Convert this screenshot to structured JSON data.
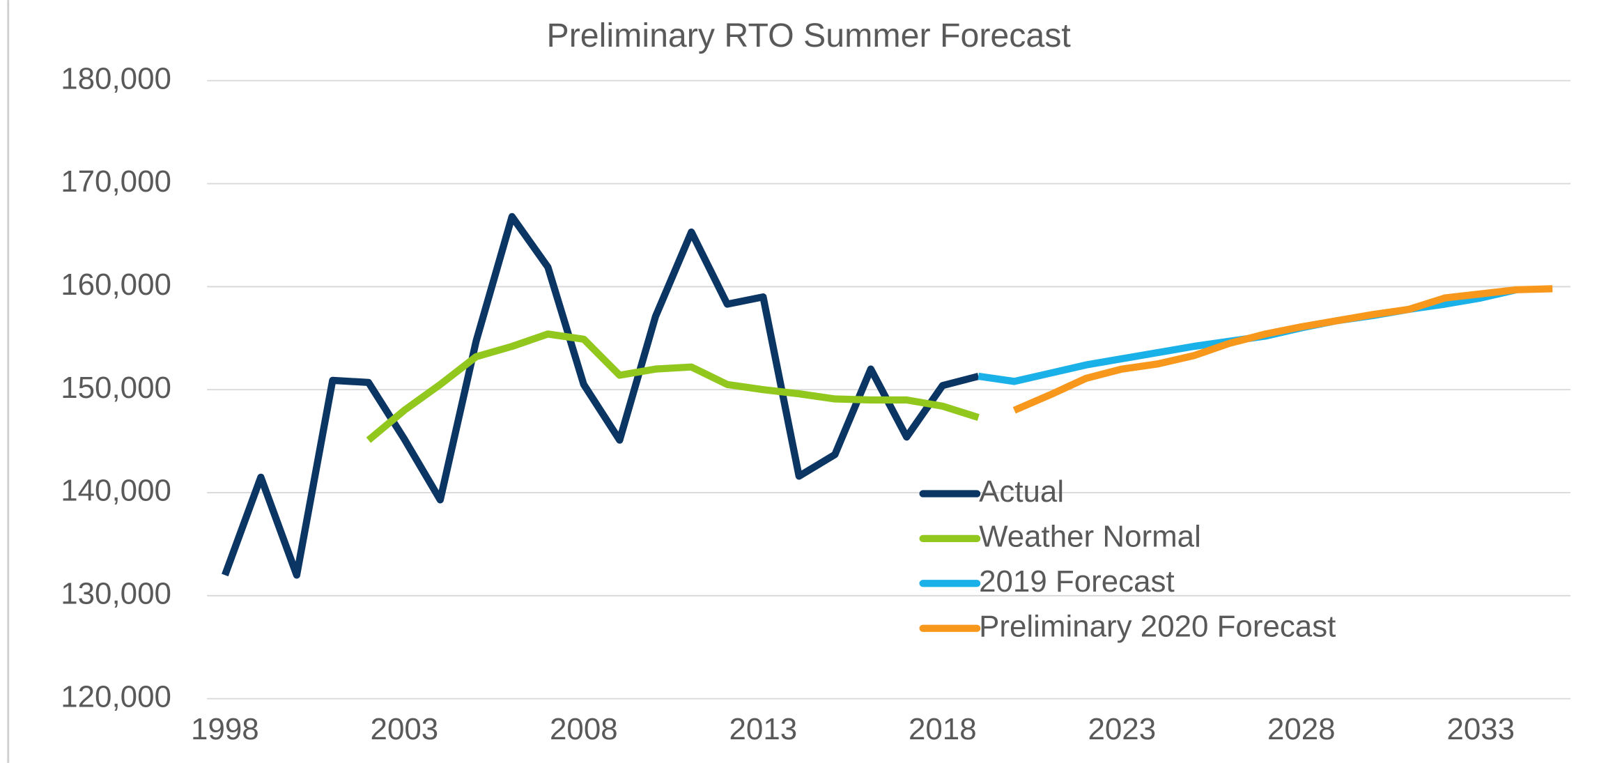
{
  "chart_data": {
    "type": "line",
    "title": "Preliminary RTO Summer Forecast",
    "x": [
      1998,
      1999,
      2000,
      2001,
      2002,
      2003,
      2004,
      2005,
      2006,
      2007,
      2008,
      2009,
      2010,
      2011,
      2012,
      2013,
      2014,
      2015,
      2016,
      2017,
      2018,
      2019,
      2020,
      2021,
      2022,
      2023,
      2024,
      2025,
      2026,
      2027,
      2028,
      2029,
      2030,
      2031,
      2032,
      2033,
      2034,
      2035
    ],
    "series": [
      {
        "name": "Actual",
        "color": "#0b3563",
        "values": [
          132000,
          141500,
          132000,
          150900,
          150700,
          145200,
          139300,
          154700,
          166800,
          161900,
          150500,
          145100,
          157100,
          165300,
          158300,
          159000,
          141600,
          143700,
          152000,
          145400,
          150400,
          151300,
          null,
          null,
          null,
          null,
          null,
          null,
          null,
          null,
          null,
          null,
          null,
          null,
          null,
          null,
          null,
          null
        ]
      },
      {
        "name": "Weather Normal",
        "color": "#92c81e",
        "values": [
          null,
          null,
          null,
          null,
          145100,
          148000,
          150500,
          153200,
          154200,
          155400,
          154900,
          151400,
          152000,
          152200,
          150500,
          150000,
          149600,
          149100,
          149000,
          149000,
          148400,
          147300,
          null,
          null,
          null,
          null,
          null,
          null,
          null,
          null,
          null,
          null,
          null,
          null,
          null,
          null,
          null,
          null
        ]
      },
      {
        "name": "2019 Forecast",
        "color": "#1ab0e8",
        "values": [
          null,
          null,
          null,
          null,
          null,
          null,
          null,
          null,
          null,
          null,
          null,
          null,
          null,
          null,
          null,
          null,
          null,
          null,
          null,
          null,
          null,
          151300,
          150800,
          151600,
          152400,
          153000,
          153600,
          154200,
          154700,
          155200,
          156000,
          156700,
          157200,
          157800,
          158300,
          158900,
          159700,
          null
        ]
      },
      {
        "name": "Preliminary 2020 Forecast",
        "color": "#f7981d",
        "values": [
          null,
          null,
          null,
          null,
          null,
          null,
          null,
          null,
          null,
          null,
          null,
          null,
          null,
          null,
          null,
          null,
          null,
          null,
          null,
          null,
          null,
          null,
          148000,
          149500,
          151100,
          152000,
          152500,
          153300,
          154500,
          155400,
          156100,
          156700,
          157300,
          157800,
          158900,
          159300,
          159700,
          159800
        ]
      }
    ],
    "xlim": [
      1997.5,
      2035.5
    ],
    "xticks": [
      1998,
      2003,
      2008,
      2013,
      2018,
      2023,
      2028,
      2033
    ],
    "ylim": [
      120000,
      180000
    ],
    "yticks": [
      {
        "value": 120000,
        "label": "120,000"
      },
      {
        "value": 130000,
        "label": "130,000"
      },
      {
        "value": 140000,
        "label": "140,000"
      },
      {
        "value": 150000,
        "label": "150,000"
      },
      {
        "value": 160000,
        "label": "160,000"
      },
      {
        "value": 170000,
        "label": "170,000"
      },
      {
        "value": 180000,
        "label": "180,000"
      }
    ],
    "grid": true,
    "legend": "lower-right"
  }
}
